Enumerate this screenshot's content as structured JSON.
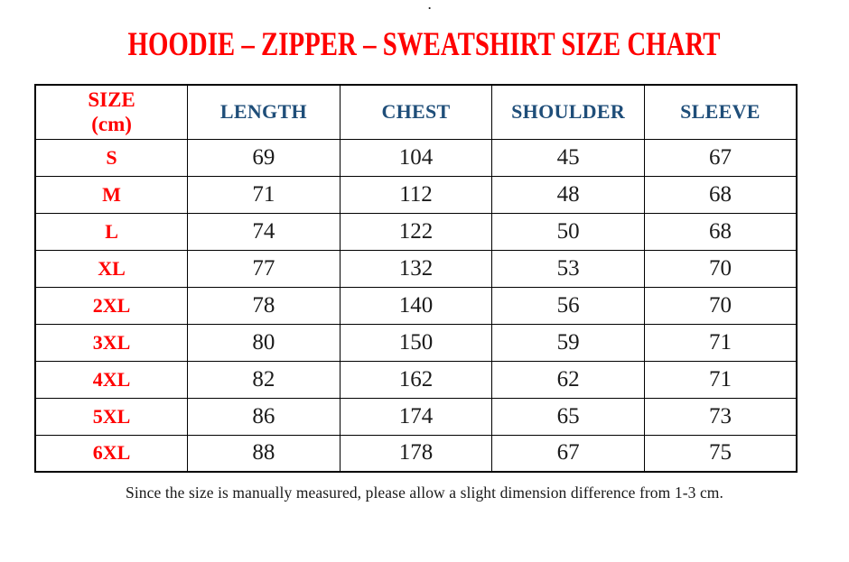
{
  "page": {
    "stray_mark": ".",
    "title": "HOODIE – ZIPPER – SWEATSHIRT SIZE CHART",
    "note": "Since the size is manually measured, please allow a slight dimension difference from 1-3 cm."
  },
  "colors": {
    "title_red": "#ff0000",
    "header_blue": "#1f4e79",
    "value_black": "#1b1b1b",
    "border_black": "#000000",
    "background": "#ffffff"
  },
  "table": {
    "header": {
      "size": "SIZE\n(cm)",
      "length": "LENGTH",
      "chest": "CHEST",
      "shoulder": "SHOULDER",
      "sleeve": "SLEEVE"
    }
  },
  "chart_data": {
    "type": "table",
    "title": "HOODIE – ZIPPER – SWEATSHIRT SIZE CHART",
    "unit": "cm",
    "columns": [
      "SIZE (cm)",
      "LENGTH",
      "CHEST",
      "SHOULDER",
      "SLEEVE"
    ],
    "rows": [
      [
        "S",
        69,
        104,
        45,
        67
      ],
      [
        "M",
        71,
        112,
        48,
        68
      ],
      [
        "L",
        74,
        122,
        50,
        68
      ],
      [
        "XL",
        77,
        132,
        53,
        70
      ],
      [
        "2XL",
        78,
        140,
        56,
        70
      ],
      [
        "3XL",
        80,
        150,
        59,
        71
      ],
      [
        "4XL",
        82,
        162,
        62,
        71
      ],
      [
        "5XL",
        86,
        174,
        65,
        73
      ],
      [
        "6XL",
        88,
        178,
        67,
        75
      ]
    ],
    "footnote": "Since the size is manually measured, please allow a slight dimension difference from 1-3 cm."
  }
}
